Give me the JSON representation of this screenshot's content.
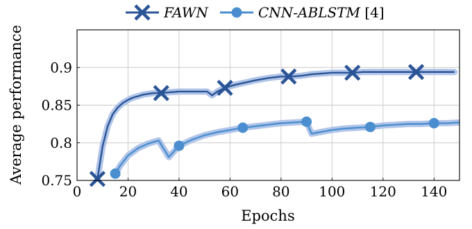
{
  "chart_data": {
    "type": "line",
    "xlabel": "Epochs",
    "ylabel": "Average performance",
    "xlim": [
      0,
      150
    ],
    "ylim": [
      0.75,
      0.95
    ],
    "xticks": [
      0,
      20,
      40,
      60,
      80,
      100,
      120,
      140
    ],
    "yticks": [
      0.75,
      0.8,
      0.85,
      0.9
    ],
    "xtick_labels": [
      "0",
      "20",
      "40",
      "60",
      "80",
      "100",
      "120",
      "140"
    ],
    "ytick_labels": [
      "0.75",
      "0.8",
      "0.85",
      "0.9"
    ],
    "grid": true,
    "legend_position": "top-center",
    "series": [
      {
        "name": "FAWN",
        "name_style": "italic",
        "color": "#2a5496",
        "band_color": "#a9bfe6",
        "marker": "x",
        "x": [
          8,
          10,
          12,
          14,
          16,
          18,
          20,
          22,
          24,
          26,
          28,
          30,
          33,
          36,
          40,
          44,
          48,
          51,
          53,
          55,
          58,
          62,
          66,
          70,
          75,
          80,
          84,
          88,
          92,
          96,
          100,
          104,
          108,
          112,
          116,
          120,
          125,
          130,
          133,
          138,
          143,
          148
        ],
        "values": [
          0.752,
          0.795,
          0.822,
          0.838,
          0.847,
          0.853,
          0.857,
          0.86,
          0.862,
          0.864,
          0.865,
          0.866,
          0.866,
          0.867,
          0.868,
          0.868,
          0.868,
          0.868,
          0.863,
          0.868,
          0.873,
          0.877,
          0.88,
          0.883,
          0.886,
          0.888,
          0.888,
          0.889,
          0.891,
          0.892,
          0.893,
          0.893,
          0.893,
          0.894,
          0.894,
          0.894,
          0.894,
          0.894,
          0.894,
          0.894,
          0.894,
          0.894
        ],
        "marker_x": [
          8,
          33,
          58,
          83,
          108,
          133
        ],
        "marker_values": [
          0.752,
          0.866,
          0.873,
          0.888,
          0.893,
          0.894
        ]
      },
      {
        "name": "CNN-ABLSTM",
        "name_style": "italic",
        "suffix": "[4]",
        "color": "#4a8ed0",
        "band_color": "#a9bfe6",
        "marker": "circle",
        "x": [
          15,
          17,
          20,
          24,
          28,
          32,
          36,
          40,
          45,
          50,
          55,
          60,
          65,
          70,
          75,
          80,
          85,
          90,
          92,
          95,
          100,
          105,
          110,
          115,
          120,
          125,
          130,
          135,
          140,
          145,
          150
        ],
        "values": [
          0.759,
          0.77,
          0.783,
          0.793,
          0.799,
          0.803,
          0.781,
          0.796,
          0.804,
          0.81,
          0.814,
          0.817,
          0.82,
          0.822,
          0.824,
          0.826,
          0.827,
          0.828,
          0.812,
          0.814,
          0.817,
          0.819,
          0.82,
          0.821,
          0.823,
          0.824,
          0.825,
          0.825,
          0.826,
          0.826,
          0.827
        ],
        "marker_x": [
          15,
          40,
          65,
          90,
          115,
          140
        ],
        "marker_values": [
          0.759,
          0.796,
          0.82,
          0.828,
          0.821,
          0.826
        ]
      }
    ]
  }
}
